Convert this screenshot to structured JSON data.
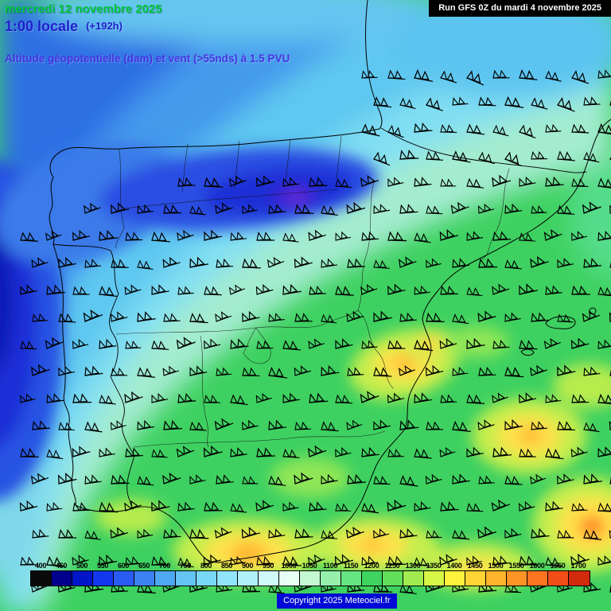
{
  "header": {
    "date": "mercredi 12 novembre 2025",
    "time": "1:00 locale",
    "forecast_offset": "(+192h)",
    "subtitle": "Altitude géopotentielle (dam) et vent (>55nds) à 1.5 PVU",
    "run_label": "Run GFS 0Z du mardi 4 novembre 2025"
  },
  "legend": {
    "labels": [
      "400",
      "450",
      "500",
      "550",
      "600",
      "650",
      "700",
      "750",
      "800",
      "850",
      "900",
      "950",
      "1000",
      "1050",
      "1100",
      "1150",
      "1200",
      "1250",
      "1300",
      "1350",
      "1400",
      "1450",
      "1500",
      "1550",
      "1600",
      "1650",
      "1700"
    ],
    "colors": [
      "#0a0a0a",
      "#00008c",
      "#0016c8",
      "#1238ee",
      "#2a5cf4",
      "#3c82f2",
      "#50a8f2",
      "#64c4f4",
      "#78d8f6",
      "#92e4fa",
      "#b0f0fa",
      "#d0fafa",
      "#e8fff6",
      "#c4f8d0",
      "#96f0ac",
      "#66e682",
      "#3ed45f",
      "#62e05a",
      "#a0ec50",
      "#d8f646",
      "#fff23c",
      "#ffd434",
      "#ffb42c",
      "#ff9426",
      "#ff7420",
      "#f04e16",
      "#d22a0c"
    ]
  },
  "footer": {
    "copyright": "Copyright 2025 Meteociel.fr",
    "bg_color": "#0009d6"
  },
  "map_colors": {
    "base_green": "#3ed161",
    "pale_green_band": "#a4ecd0",
    "light_cyan_band": "#82dff2",
    "cyan_band": "#5fc8f0",
    "light_blue_band": "#459aec",
    "blue_band": "#2f6fe4",
    "left_band_blue": "#2853e2",
    "deep_blue_core": "#1b2fd6",
    "darkest_blue": "#0f1cb8",
    "trough_blue": "#2b4ee2",
    "trough_core": "#1e2fd6",
    "trough_purple": "#6a2fd8",
    "blue_bridge": "#3a7ae8",
    "top_strip_cyan": "#66c6f0",
    "topright_cyan": "#5cc4f0",
    "green_tongue": "#55dc8a",
    "lower_left_cyan": "#7fd8ea",
    "yellow_green": "#c6ee4e",
    "yellow_patch": "#ffe14b",
    "orange_core": "#ffa526"
  }
}
